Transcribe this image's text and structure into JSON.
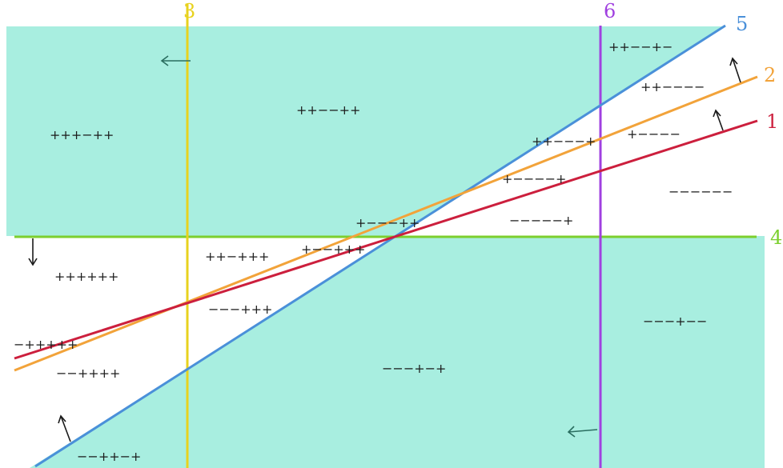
{
  "lines": [
    {
      "id": "line-1",
      "label": "1",
      "color": "#cc1f3d"
    },
    {
      "id": "line-2",
      "label": "2",
      "color": "#f2a33a"
    },
    {
      "id": "line-3",
      "label": "3",
      "color": "#e8d21e"
    },
    {
      "id": "line-4",
      "label": "4",
      "color": "#7ccf2e"
    },
    {
      "id": "line-5",
      "label": "5",
      "color": "#4a90d9"
    },
    {
      "id": "line-6",
      "label": "6",
      "color": "#a040e0"
    }
  ],
  "region_labels": [
    "+++−++",
    "++−−++",
    "++−−+−",
    "++−−−−",
    "++−−−+",
    "+−−−−",
    "+−−−−+",
    "−−−−−−",
    "−−−−−+",
    "+−−−++",
    "++−+++",
    "+−−+++",
    "++++++",
    "−−−+++",
    "−+++++",
    "−−++++",
    "−−−+−+",
    "−−−+−−",
    "−−++−+"
  ],
  "colors": {
    "shaded_region": "#a8eee0",
    "arrow": "#1a1a1a",
    "arrow_teal": "#2a6e60"
  }
}
